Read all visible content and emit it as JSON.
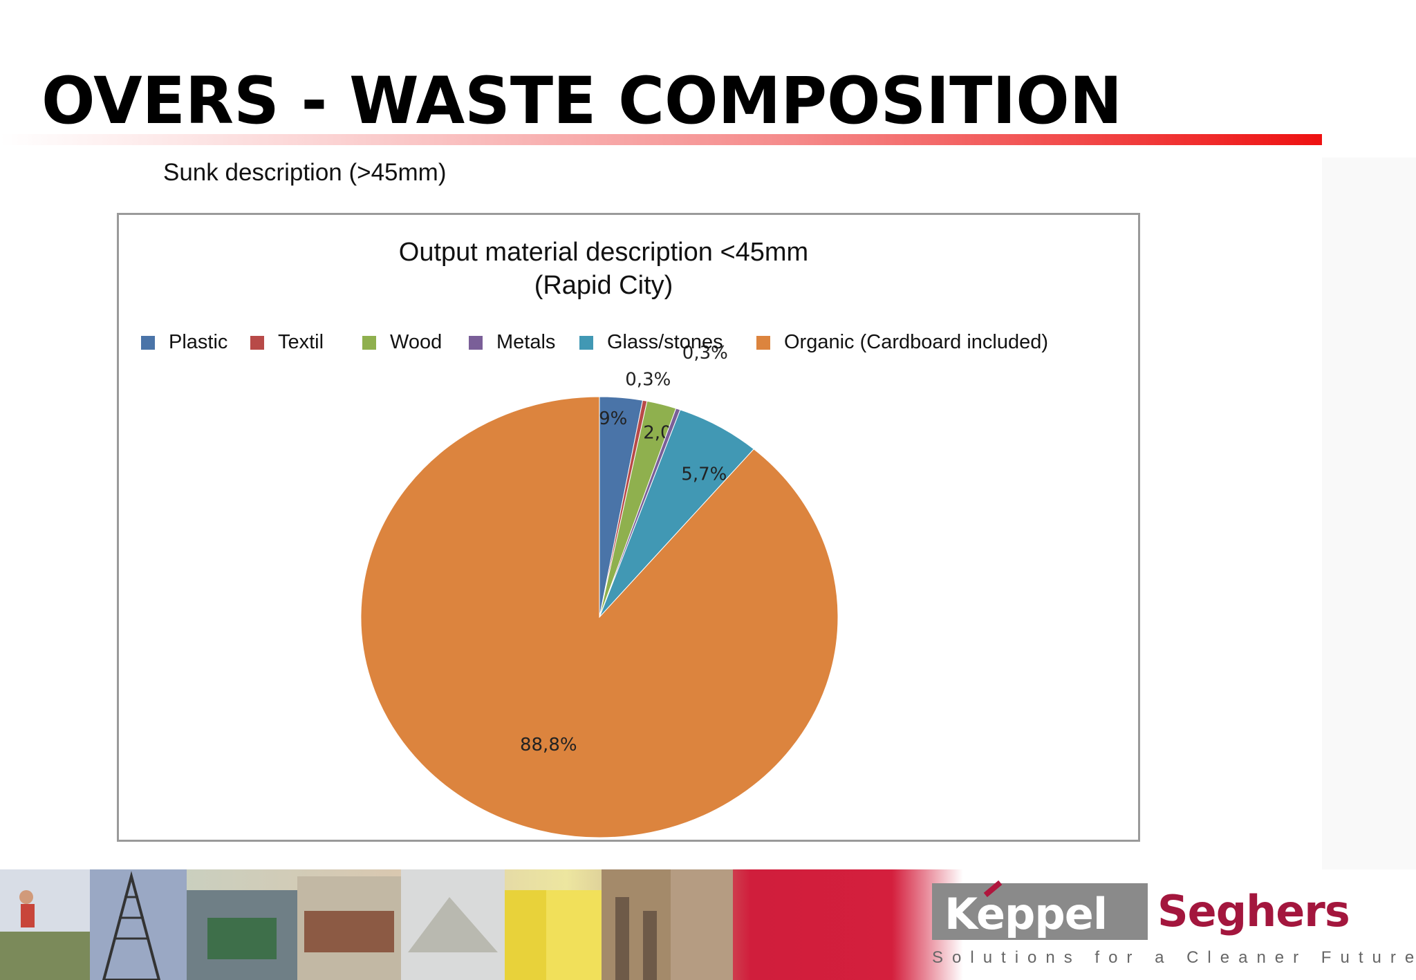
{
  "slide": {
    "title": "OVERS - WASTE COMPOSITION",
    "subtitle": "Sunk description (>45mm)"
  },
  "chart_data": {
    "type": "pie",
    "title": "Output material description <45mm (Rapid City)",
    "title_lines": [
      "Output material description <45mm",
      "(Rapid City)"
    ],
    "legend_position": "top",
    "slices": [
      {
        "name": "Plastic",
        "value": 2.9,
        "label": "2,9%",
        "color": "#4a74a8"
      },
      {
        "name": "Textil",
        "value": 0.3,
        "label": "0,3%",
        "color": "#b84a48"
      },
      {
        "name": "Wood",
        "value": 2.0,
        "label": "2,0%",
        "color": "#8fb04e"
      },
      {
        "name": "Metals",
        "value": 0.3,
        "label": "0,3%",
        "color": "#7a5f98"
      },
      {
        "name": "Glass/stones",
        "value": 5.7,
        "label": "5,7%",
        "color": "#4198b4"
      },
      {
        "name": "Organic (Cardboard included)",
        "value": 88.8,
        "label": "88,8%",
        "color": "#dc843e"
      }
    ]
  },
  "footer": {
    "logo_word_1": "Keppel",
    "logo_word_2": "Seghers",
    "tagline": "Solutions for a Cleaner Future"
  }
}
